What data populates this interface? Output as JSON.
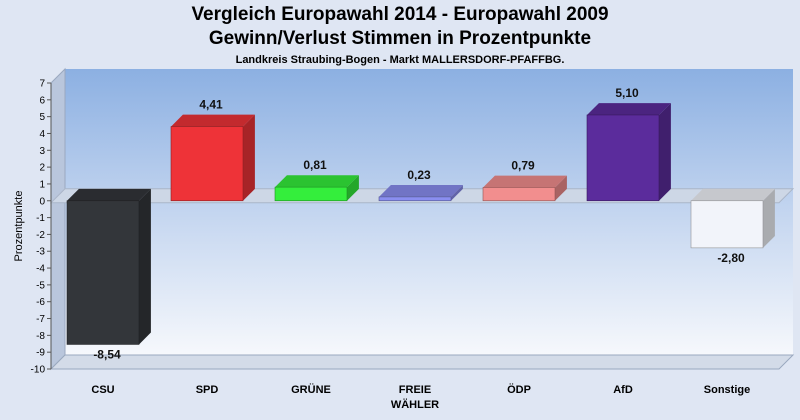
{
  "chart_data": {
    "type": "bar",
    "title": "Vergleich Europawahl 2014 - Europawahl 2009",
    "title_line2": "Gewinn/Verlust Stimmen in Prozentpunkte",
    "subtitle": "Landkreis Straubing-Bogen - Markt MALLERSDORF-PFAFFBG.",
    "ylabel": "Prozentpunkte",
    "ylim": [
      -10,
      7
    ],
    "yticks": [
      7,
      6,
      5,
      4,
      3,
      2,
      1,
      0,
      -1,
      -2,
      -3,
      -4,
      -5,
      -6,
      -7,
      -8,
      -9,
      -10
    ],
    "grid": false,
    "legend": "none",
    "categories": [
      {
        "line1": "CSU",
        "line2": ""
      },
      {
        "line1": "SPD",
        "line2": ""
      },
      {
        "line1": "GRÜNE",
        "line2": ""
      },
      {
        "line1": "FREIE",
        "line2": "WÄHLER"
      },
      {
        "line1": "ÖDP",
        "line2": ""
      },
      {
        "line1": "AfD",
        "line2": ""
      },
      {
        "line1": "Sonstige",
        "line2": ""
      }
    ],
    "values": [
      -8.54,
      4.41,
      0.81,
      0.23,
      0.79,
      5.1,
      -2.8
    ],
    "value_labels": [
      "-8,54",
      "4,41",
      "0,81",
      "0,23",
      "0,79",
      "5,10",
      "-2,80"
    ],
    "colors": [
      "#33363a",
      "#ee3338",
      "#34ee3c",
      "#8a8ef0",
      "#f28e8e",
      "#5b2c9c",
      "#f2f4fa"
    ]
  }
}
